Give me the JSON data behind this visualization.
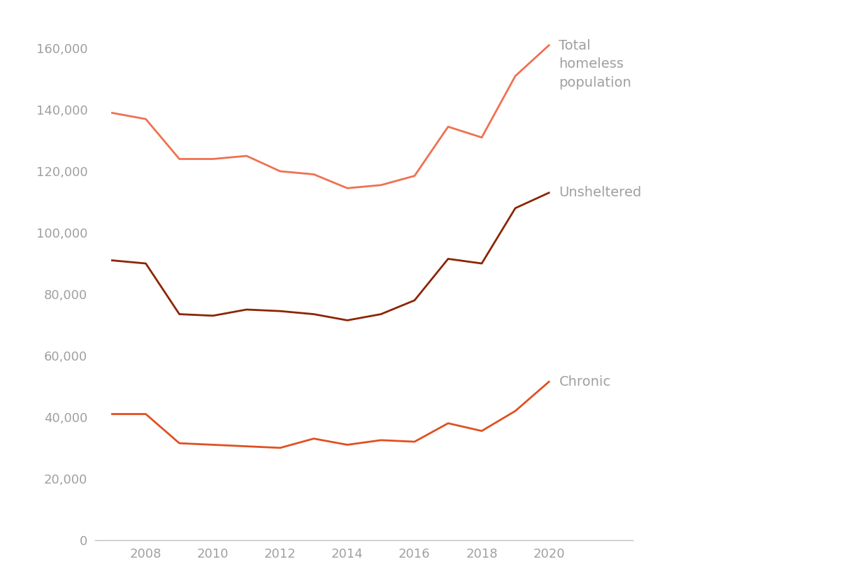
{
  "years": [
    2007,
    2008,
    2009,
    2010,
    2011,
    2012,
    2013,
    2014,
    2015,
    2016,
    2017,
    2018,
    2019,
    2020
  ],
  "total": [
    139000,
    137000,
    124000,
    124000,
    125000,
    120000,
    119000,
    114500,
    115500,
    118500,
    134500,
    131000,
    151000,
    161000
  ],
  "unsheltered": [
    91000,
    90000,
    73500,
    73000,
    75000,
    74500,
    73500,
    71500,
    73500,
    78000,
    91500,
    90000,
    108000,
    113000
  ],
  "chronic": [
    41000,
    41000,
    31500,
    31000,
    30500,
    30000,
    33000,
    31000,
    32500,
    32000,
    38000,
    35500,
    42000,
    51500
  ],
  "total_color": "#F07050",
  "unsheltered_color": "#8B2500",
  "chronic_color": "#E05020",
  "ylim": [
    0,
    170000
  ],
  "yticks": [
    0,
    20000,
    40000,
    60000,
    80000,
    100000,
    120000,
    140000,
    160000
  ],
  "xticks": [
    2008,
    2010,
    2012,
    2014,
    2016,
    2018,
    2020
  ],
  "label_total": "Total\nhomeless\npopulation",
  "label_unsheltered": "Unsheltered",
  "label_chronic": "Chronic",
  "background_color": "#ffffff",
  "text_color": "#a0a0a0",
  "axis_color": "#c0c0c0",
  "line_width": 2.0,
  "label_fontsize": 14
}
